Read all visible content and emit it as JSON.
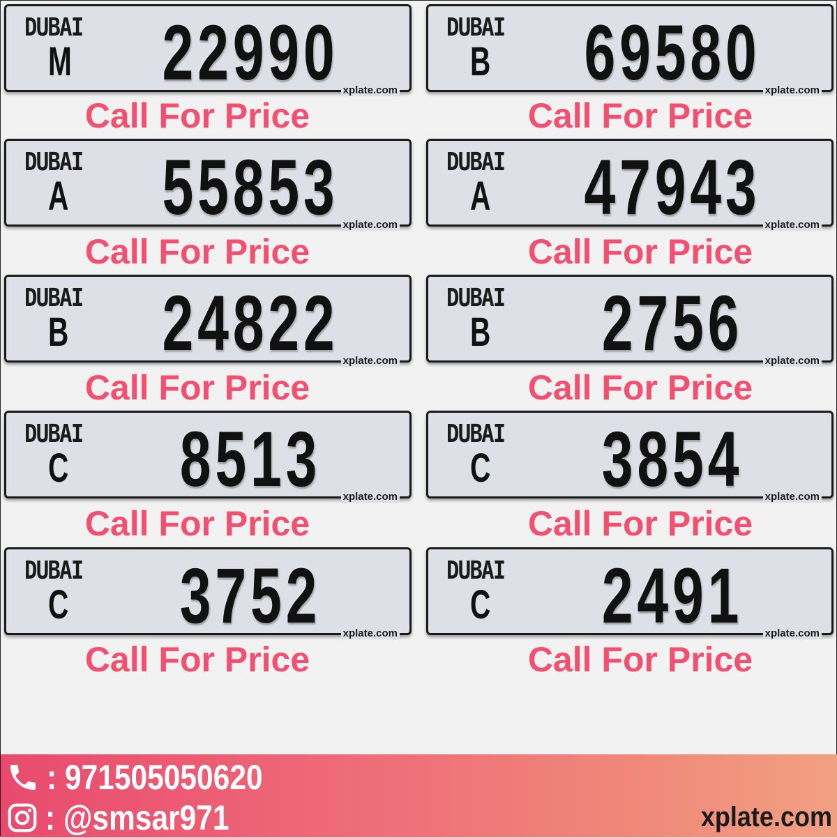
{
  "plates": [
    {
      "city": "DUBAI",
      "code": "M",
      "number": "22990",
      "watermark": "xplate.com",
      "price": "Call For Price"
    },
    {
      "city": "DUBAI",
      "code": "B",
      "number": "69580",
      "watermark": "xplate.com",
      "price": "Call For Price"
    },
    {
      "city": "DUBAI",
      "code": "A",
      "number": "55853",
      "watermark": "xplate.com",
      "price": "Call For Price"
    },
    {
      "city": "DUBAI",
      "code": "A",
      "number": "47943",
      "watermark": "xplate.com",
      "price": "Call For Price"
    },
    {
      "city": "DUBAI",
      "code": "B",
      "number": "24822",
      "watermark": "xplate.com",
      "price": "Call For Price"
    },
    {
      "city": "DUBAI",
      "code": "B",
      "number": "2756",
      "watermark": "xplate.com",
      "price": "Call For Price"
    },
    {
      "city": "DUBAI",
      "code": "C",
      "number": "8513",
      "watermark": "xplate.com",
      "price": "Call For Price"
    },
    {
      "city": "DUBAI",
      "code": "C",
      "number": "3854",
      "watermark": "xplate.com",
      "price": "Call For Price"
    },
    {
      "city": "DUBAI",
      "code": "C",
      "number": "3752",
      "watermark": "xplate.com",
      "price": "Call For Price"
    },
    {
      "city": "DUBAI",
      "code": "C",
      "number": "2491",
      "watermark": "xplate.com",
      "price": "Call For Price"
    }
  ],
  "footer": {
    "phone": ": 971505050620",
    "instagram": ": @smsar971",
    "site": "xplate.com",
    "phone_icon": "phone-icon",
    "instagram_icon": "instagram-icon"
  },
  "colors": {
    "price": "#f25070",
    "plate": "#dde0e6",
    "footer_start": "#e94a6e",
    "footer_end": "#f2a082"
  }
}
